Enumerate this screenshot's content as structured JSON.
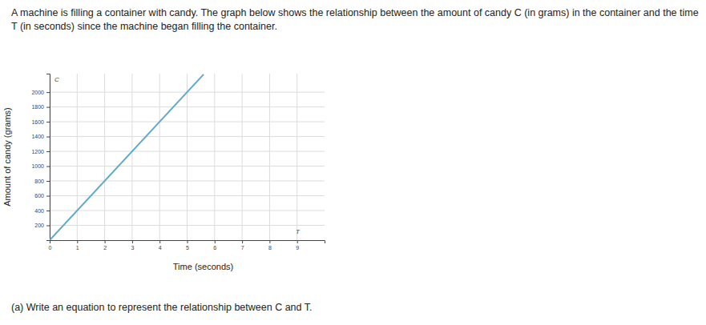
{
  "chart_data": {
    "type": "line",
    "annotations": [
      "A machine is filling a container with candy. The graph below shows the relationship between the amount of candy C (in grams) in the container and the time T (in seconds) since the machine began filling the container.",
      "(a) Write an equation to represent the relationship between C and T.",
      "C",
      "T"
    ],
    "x_label": "Time (seconds)",
    "y_label": "Amount of candy (grams)",
    "x": [
      0,
      5.6
    ],
    "series": [
      {
        "name": "Candy",
        "color": "#5fa9c9",
        "values": [
          0,
          2240
        ]
      }
    ],
    "xlim": [
      0,
      10
    ],
    "xticks": [
      0,
      1,
      2,
      3,
      4,
      5,
      6,
      7,
      8,
      9
    ],
    "ylim": [
      0,
      2250
    ],
    "yticks": [
      200,
      400,
      600,
      800,
      1000,
      1200,
      1400,
      1600,
      1800,
      2000
    ],
    "grid": true
  }
}
